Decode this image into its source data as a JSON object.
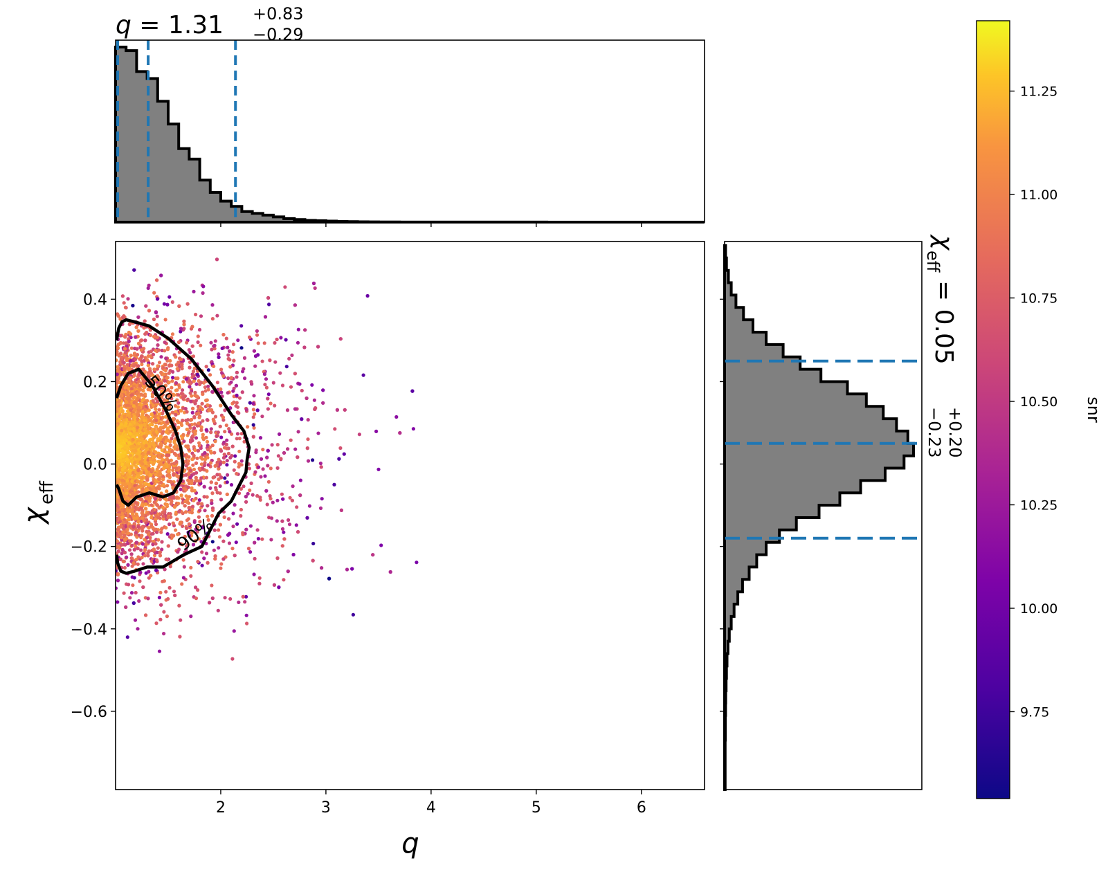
{
  "chart_data": {
    "type": "scatter",
    "layout": "corner-plot-with-marginal-histograms",
    "main_scatter": {
      "xlabel": "q",
      "ylabel": "χ",
      "ylabel_sub": "eff",
      "xlim": [
        1.0,
        6.6
      ],
      "ylim": [
        -0.79,
        0.54
      ],
      "xticks": [
        2,
        3,
        4,
        5,
        6
      ],
      "xtick_labels": [
        "2",
        "3",
        "4",
        "5",
        "6"
      ],
      "yticks": [
        0.4,
        0.2,
        0.0,
        -0.2,
        -0.4,
        -0.6
      ],
      "ytick_labels": [
        "0.4",
        "0.2",
        "0.0",
        "−0.2",
        "−0.4",
        "−0.6"
      ],
      "color_by": "snr",
      "contours": [
        {
          "level": "50%",
          "path_q": [
            1.01,
            1.05,
            1.12,
            1.22,
            1.35,
            1.48,
            1.57,
            1.62,
            1.64,
            1.62,
            1.55,
            1.45,
            1.32,
            1.2,
            1.12,
            1.07,
            1.03,
            1.01
          ],
          "path_chi": [
            0.16,
            0.19,
            0.22,
            0.23,
            0.19,
            0.13,
            0.08,
            0.04,
            0.0,
            -0.04,
            -0.07,
            -0.08,
            -0.07,
            -0.08,
            -0.1,
            -0.09,
            -0.06,
            -0.05
          ]
        },
        {
          "level": "90%",
          "path_q": [
            1.01,
            1.03,
            1.06,
            1.1,
            1.18,
            1.32,
            1.5,
            1.72,
            1.92,
            2.1,
            2.22,
            2.27,
            2.25,
            2.24,
            2.22,
            2.18,
            2.1,
            1.98,
            1.82,
            1.65,
            1.45,
            1.3,
            1.18,
            1.1,
            1.05,
            1.02,
            1.01
          ],
          "path_chi": [
            0.3,
            0.33,
            0.345,
            0.35,
            0.345,
            0.335,
            0.305,
            0.255,
            0.19,
            0.12,
            0.08,
            0.04,
            0.01,
            -0.02,
            -0.03,
            -0.05,
            -0.09,
            -0.12,
            -0.2,
            -0.22,
            -0.25,
            -0.25,
            -0.26,
            -0.265,
            -0.26,
            -0.24,
            -0.22
          ],
          "label_at": [
            1.93,
            -0.13
          ]
        }
      ]
    },
    "top_histogram": {
      "variable": "q",
      "title_var": "q",
      "title_median": "1.31",
      "title_plus": "+0.83",
      "title_minus": "−0.29",
      "bin_width": 0.1,
      "bin_start": 1.0,
      "counts": [
        100,
        98,
        86,
        82,
        69,
        56,
        42,
        36,
        24,
        17,
        12,
        9,
        6,
        5,
        4,
        3,
        2,
        1.5,
        1,
        0.8,
        0.6,
        0.4,
        0.3,
        0.2,
        0.15,
        0.1,
        0.1,
        0.05,
        0.05,
        0.05,
        0.05,
        0.05,
        0.05,
        0.04,
        0.04,
        0.03,
        0.03,
        0.02,
        0.02,
        0.02,
        0.02,
        0.01,
        0.01,
        0.01,
        0.01,
        0.01,
        0.01,
        0.01,
        0.01,
        0.01,
        0.01,
        0.01,
        0.01,
        0.01,
        0.01,
        0.01
      ],
      "dashed_lines": [
        1.02,
        1.31,
        2.14
      ],
      "dashed_color": "#1f77b4",
      "fill_color": "#808080"
    },
    "right_histogram": {
      "variable": "chi_eff",
      "title_var": "χ",
      "title_sub": "eff",
      "title_median": "0.05",
      "title_plus": "+0.20",
      "title_minus": "−0.23",
      "bin_edges": [
        -0.79,
        -0.76,
        -0.73,
        -0.7,
        -0.67,
        -0.64,
        -0.61,
        -0.58,
        -0.55,
        -0.52,
        -0.49,
        -0.46,
        -0.43,
        -0.4,
        -0.37,
        -0.34,
        -0.31,
        -0.28,
        -0.25,
        -0.22,
        -0.19,
        -0.16,
        -0.13,
        -0.1,
        -0.07,
        -0.04,
        -0.01,
        0.02,
        0.05,
        0.08,
        0.11,
        0.14,
        0.17,
        0.2,
        0.23,
        0.26,
        0.29,
        0.32,
        0.35,
        0.38,
        0.41,
        0.44,
        0.47,
        0.5,
        0.53
      ],
      "counts": [
        0.3,
        0.3,
        0.3,
        0.3,
        0.4,
        0.4,
        0.5,
        0.6,
        0.8,
        1.0,
        1.3,
        1.8,
        2.5,
        3.5,
        5,
        7,
        9.5,
        13,
        17,
        22,
        29,
        38,
        50,
        61,
        72,
        85,
        95,
        100,
        97,
        91,
        84,
        75,
        65,
        51,
        40,
        31,
        22,
        15,
        10,
        6,
        3.5,
        2,
        1,
        0.5
      ],
      "dashed_lines": [
        -0.18,
        0.05,
        0.25
      ],
      "dashed_color": "#1f77b4",
      "fill_color": "#808080"
    },
    "colorbar": {
      "label": "snr",
      "colormap": "plasma",
      "range": [
        9.54,
        11.42
      ],
      "ticks": [
        9.75,
        10.0,
        10.25,
        10.5,
        10.75,
        11.0,
        11.25
      ],
      "tick_labels": [
        "9.75",
        "10.00",
        "10.25",
        "10.50",
        "10.75",
        "11.00",
        "11.25"
      ]
    },
    "contour_labels": [
      "50%",
      "90%"
    ]
  }
}
